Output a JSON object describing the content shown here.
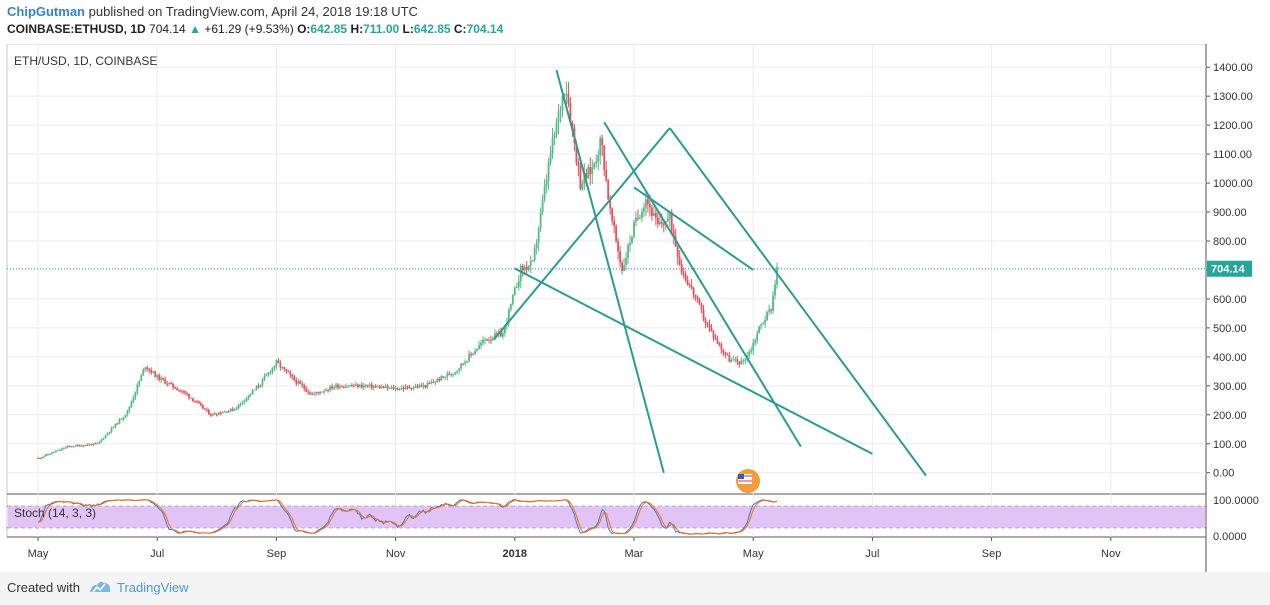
{
  "header": {
    "author": "ChipGutman",
    "published": "published on TradingView.com, April 24, 2018 19:18 UTC",
    "symbol": "COINBASE:ETHUSD, 1D",
    "last": "704.14",
    "change": "+61.29 (+9.53%)",
    "o_label": "O:",
    "o_value": "642.85",
    "h_label": "H:",
    "h_value": "711.00",
    "l_label": "L:",
    "l_value": "642.85",
    "c_label": "C:",
    "c_value": "704.14"
  },
  "chart_data": {
    "type": "candlestick",
    "title": "ETH/USD, 1D, COINBASE",
    "price_axis": {
      "ticks": [
        "0.00",
        "100.00",
        "200.00",
        "300.00",
        "400.00",
        "500.00",
        "600.00",
        "700.00",
        "800.00",
        "900.00",
        "1000.00",
        "1100.00",
        "1200.00",
        "1300.00",
        "1400.00"
      ],
      "range": [
        -70,
        1480
      ],
      "last_price_label": "704.14",
      "last_price": 704.14
    },
    "time_axis": {
      "labels": [
        "May",
        "Jul",
        "Sep",
        "Nov",
        "2018",
        "Mar",
        "May",
        "Jul",
        "Sep",
        "Nov"
      ],
      "label_months": [
        0,
        2,
        4,
        6,
        8,
        10,
        12,
        14,
        16,
        18
      ]
    },
    "price_path_monthly_approx": [
      {
        "month": 0.0,
        "price": 50
      },
      {
        "month": 0.5,
        "price": 90
      },
      {
        "month": 1.0,
        "price": 100
      },
      {
        "month": 1.5,
        "price": 210
      },
      {
        "month": 1.8,
        "price": 370
      },
      {
        "month": 2.0,
        "price": 330
      },
      {
        "month": 2.5,
        "price": 270
      },
      {
        "month": 2.9,
        "price": 200
      },
      {
        "month": 3.3,
        "price": 220
      },
      {
        "month": 3.7,
        "price": 300
      },
      {
        "month": 4.0,
        "price": 380
      },
      {
        "month": 4.3,
        "price": 320
      },
      {
        "month": 4.6,
        "price": 270
      },
      {
        "month": 5.0,
        "price": 300
      },
      {
        "month": 5.5,
        "price": 300
      },
      {
        "month": 6.0,
        "price": 290
      },
      {
        "month": 6.5,
        "price": 300
      },
      {
        "month": 7.0,
        "price": 350
      },
      {
        "month": 7.5,
        "price": 460
      },
      {
        "month": 7.8,
        "price": 480
      },
      {
        "month": 8.1,
        "price": 700
      },
      {
        "month": 8.3,
        "price": 720
      },
      {
        "month": 8.6,
        "price": 1100
      },
      {
        "month": 8.85,
        "price": 1350
      },
      {
        "month": 9.1,
        "price": 1000
      },
      {
        "month": 9.3,
        "price": 1050
      },
      {
        "month": 9.45,
        "price": 1150
      },
      {
        "month": 9.6,
        "price": 900
      },
      {
        "month": 9.8,
        "price": 700
      },
      {
        "month": 10.0,
        "price": 850
      },
      {
        "month": 10.2,
        "price": 950
      },
      {
        "month": 10.4,
        "price": 850
      },
      {
        "month": 10.6,
        "price": 880
      },
      {
        "month": 10.8,
        "price": 700
      },
      {
        "month": 11.0,
        "price": 620
      },
      {
        "month": 11.2,
        "price": 520
      },
      {
        "month": 11.4,
        "price": 450
      },
      {
        "month": 11.6,
        "price": 390
      },
      {
        "month": 11.8,
        "price": 380
      },
      {
        "month": 11.95,
        "price": 420
      },
      {
        "month": 12.1,
        "price": 500
      },
      {
        "month": 12.3,
        "price": 570
      },
      {
        "month": 12.4,
        "price": 704.14
      }
    ],
    "trendlines": [
      {
        "from": {
          "month": 7.65,
          "price": 460
        },
        "to": {
          "month": 10.6,
          "price": 1190
        }
      },
      {
        "from": {
          "month": 10.6,
          "price": 1190
        },
        "to": {
          "month": 14.9,
          "price": -10
        }
      },
      {
        "from": {
          "month": 8.0,
          "price": 705
        },
        "to": {
          "month": 14.0,
          "price": 65
        }
      },
      {
        "from": {
          "month": 8.7,
          "price": 1390
        },
        "to": {
          "month": 10.5,
          "price": 0
        }
      },
      {
        "from": {
          "month": 9.5,
          "price": 1210
        },
        "to": {
          "month": 12.8,
          "price": 90
        }
      },
      {
        "from": {
          "month": 10.0,
          "price": 985
        },
        "to": {
          "month": 12.0,
          "price": 700
        }
      }
    ],
    "stochastic": {
      "title": "Stoch (14, 3, 3)",
      "ticks": [
        "100.0000",
        "0.0000"
      ],
      "band_upper": 80,
      "band_lower": 20,
      "band_color": "#e1c4f5"
    },
    "colors": {
      "up": "#53b987",
      "down": "#eb4d5c",
      "trendline": "#2a9d8f",
      "last_price_line": "#26a69a",
      "stoch_k": "#3c78d8",
      "stoch_d": "#ff6d00"
    }
  },
  "footer": {
    "created_with": "Created with",
    "brand": "TradingView"
  }
}
